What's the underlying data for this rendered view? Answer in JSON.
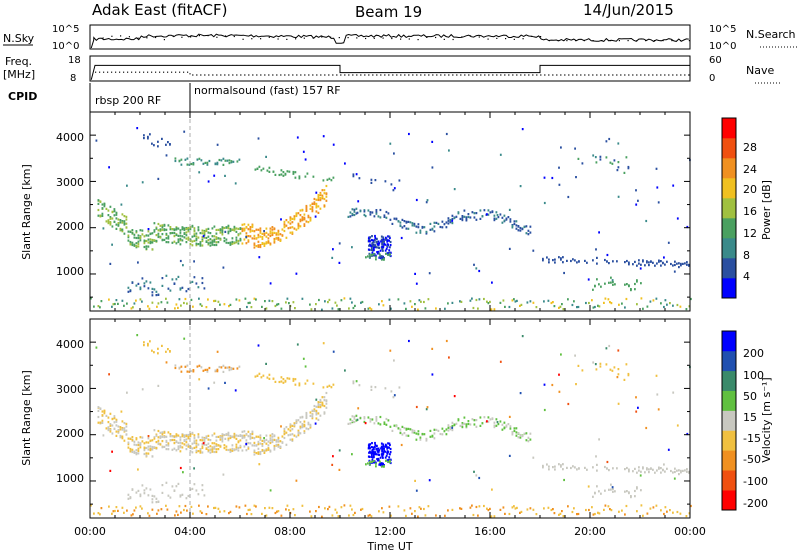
{
  "header": {
    "title": "Adak East (fitACF)",
    "beam": "Beam 19",
    "date": "14/Jun/2015"
  },
  "top_panels": {
    "nsky_label": "N.Sky",
    "nsearch_label": "N.Search",
    "nsky_ticks": [
      "10^5",
      "10^0"
    ],
    "nsearch_ticks": [
      "10^5",
      "10^0"
    ],
    "freq_label_1": "Freq.",
    "freq_label_2": "[MHz]",
    "freq_ticks": [
      "18",
      "8"
    ],
    "nave_label": "Nave",
    "nave_ticks": [
      "60",
      "0"
    ],
    "cpid_label": "CPID",
    "cpid_segments": [
      {
        "text": "rbsp 200 RF",
        "start_hr": 0.3
      },
      {
        "text": "normalsound (fast) 157 RF",
        "start_hr": 4.0
      }
    ]
  },
  "chart_data": [
    {
      "type": "heatmap",
      "name": "power",
      "ylabel": "Slant Range [km]",
      "yticks": [
        "1000",
        "2000",
        "3000",
        "4000"
      ],
      "ylim": [
        200,
        4500
      ],
      "xlim": [
        0,
        24
      ],
      "colorbar": {
        "label": "Power [dB]",
        "ticks": [
          "4",
          "8",
          "12",
          "16",
          "20",
          "24",
          "28"
        ],
        "range": [
          0,
          32
        ],
        "colors": [
          "#0000ff",
          "#2a4fa0",
          "#3a8a8a",
          "#4aa060",
          "#a0c040",
          "#f0c020",
          "#f09020",
          "#f05010",
          "#ff0000"
        ]
      }
    },
    {
      "type": "heatmap",
      "name": "velocity",
      "ylabel": "Slant Range [km]",
      "yticks": [
        "1000",
        "2000",
        "3000",
        "4000"
      ],
      "ylim": [
        200,
        4500
      ],
      "xlim": [
        0,
        24
      ],
      "xlabel": "Time UT",
      "xticks": [
        "00:00",
        "04:00",
        "08:00",
        "12:00",
        "16:00",
        "20:00",
        "00:00"
      ],
      "colorbar": {
        "label": "Velocity [m s⁻¹]",
        "ticks": [
          "200",
          "100",
          "50",
          "15",
          "-15",
          "-50",
          "-100",
          "-200"
        ],
        "colors": [
          "#0000ff",
          "#2050b0",
          "#3a8a6a",
          "#60c040",
          "#c8c8c0",
          "#f0c040",
          "#f09020",
          "#f05010",
          "#ff0000"
        ]
      }
    }
  ]
}
